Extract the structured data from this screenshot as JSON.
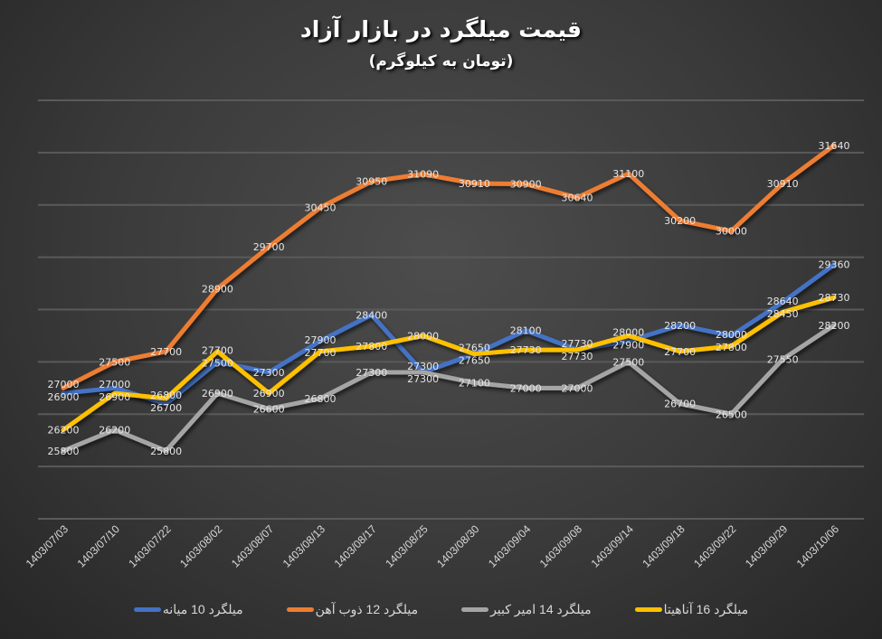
{
  "chart_data": {
    "type": "line",
    "title": "قیمت میلگرد در بازار آزاد",
    "subtitle": "(تومان به کیلوگرم)",
    "xlabel": "",
    "ylabel": "",
    "ylim": [
      24500,
      32500
    ],
    "y_major_unit": 1000,
    "grid": true,
    "y_axis_labels_shown": false,
    "legend_placement": "bottom",
    "categories": [
      "1403/07/03",
      "1403/07/10",
      "1403/07/22",
      "1403/08/02",
      "1403/08/07",
      "1403/08/13",
      "1403/08/17",
      "1403/08/25",
      "1403/08/30",
      "1403/09/04",
      "1403/09/08",
      "1403/09/14",
      "1403/09/18",
      "1403/09/22",
      "1403/09/29",
      "1403/10/06"
    ],
    "series": [
      {
        "name": "میلگرد 10 میانه",
        "color": "#4472C4",
        "values": [
          26900,
          27000,
          26700,
          27500,
          27300,
          27900,
          28400,
          27300,
          27650,
          28100,
          27730,
          27900,
          28200,
          28000,
          28640,
          29360
        ]
      },
      {
        "name": "میلگرد  12 ذوب آهن",
        "color": "#ED7D31",
        "values": [
          27000,
          27500,
          27700,
          28900,
          29700,
          30450,
          30950,
          31090,
          30910,
          30900,
          30640,
          31100,
          30200,
          30000,
          30910,
          31640
        ]
      },
      {
        "name": "میلگرد 14 امیر کبیر",
        "color": "#A5A5A5",
        "values": [
          25800,
          26200,
          25800,
          26900,
          26600,
          26800,
          27300,
          27300,
          27100,
          27000,
          27000,
          27500,
          26700,
          26500,
          27550,
          28200
        ]
      },
      {
        "name": "میلگرد 16 آناهیتا",
        "color": "#FFC000",
        "values": [
          26200,
          26900,
          26800,
          27700,
          26900,
          27700,
          27800,
          28000,
          27650,
          27730,
          27730,
          28000,
          27700,
          27800,
          28450,
          28730
        ]
      }
    ]
  }
}
